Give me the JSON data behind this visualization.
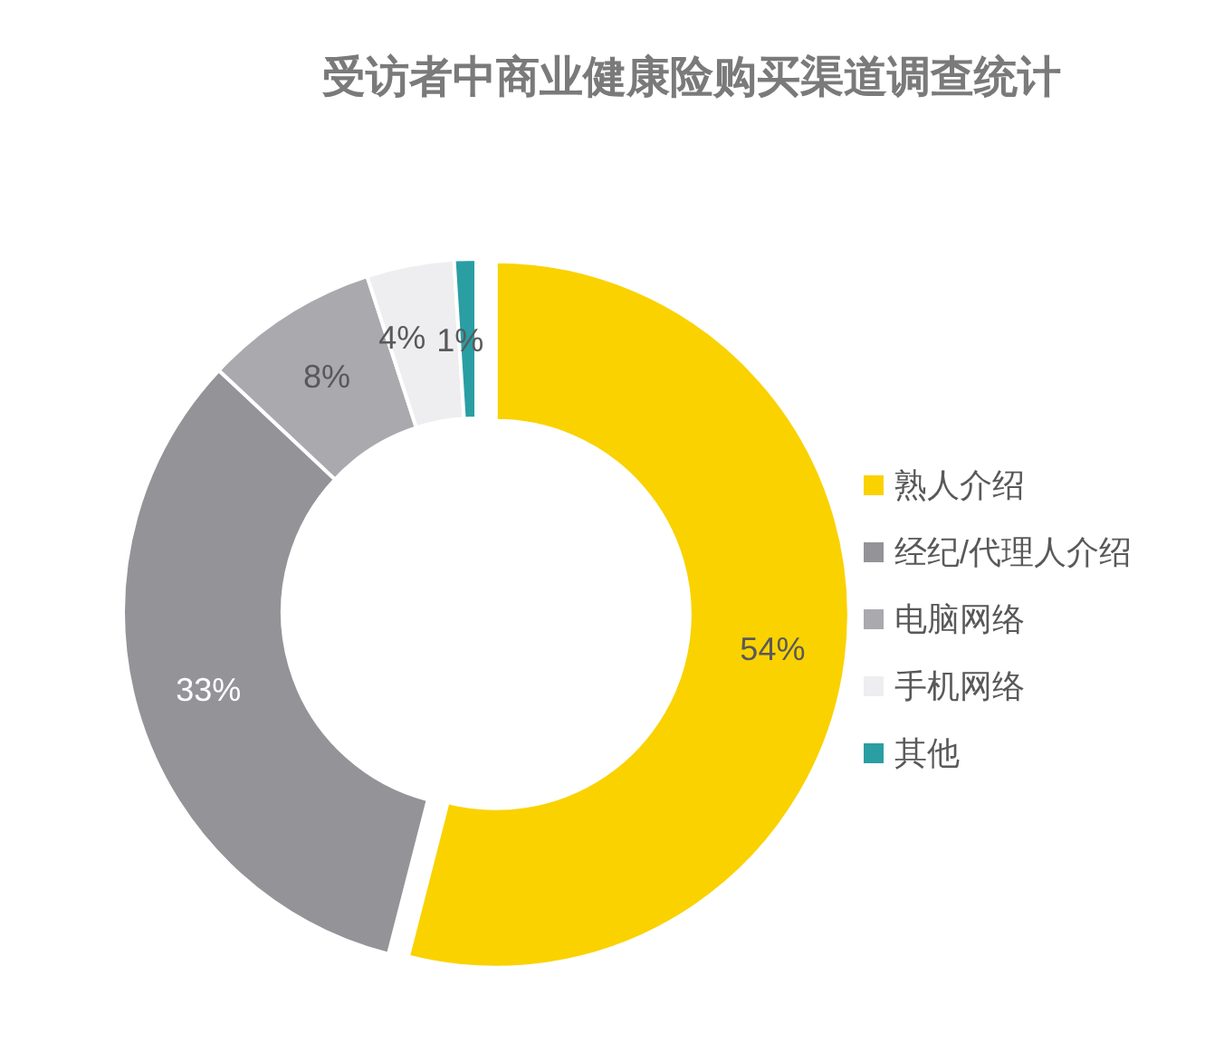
{
  "chart_data": {
    "type": "donut",
    "title": "受访者中商业健康险购买渠道调查统计",
    "categories": [
      "熟人介绍",
      "经纪/代理人介绍",
      "电脑网络",
      "手机网络",
      "其他"
    ],
    "values": [
      54,
      33,
      8,
      4,
      1
    ],
    "colors": [
      "#fad200",
      "#939398",
      "#a9a9ae",
      "#eeeef0",
      "#2a9ea3"
    ],
    "value_labels": [
      "54%",
      "33%",
      "8%",
      "4%",
      "1%"
    ],
    "legend": "right"
  }
}
